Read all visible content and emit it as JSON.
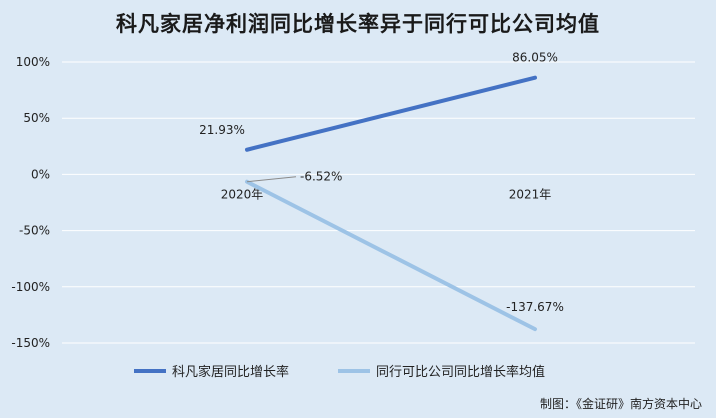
{
  "chart_data": {
    "type": "line",
    "title": "科凡家居净利润同比增长率异于同行可比公司均值",
    "categories": [
      "2020年",
      "2021年"
    ],
    "ylim": [
      -150,
      100
    ],
    "yticks": [
      100,
      50,
      0,
      -50,
      -100,
      -150
    ],
    "ytick_labels": [
      "100%",
      "50%",
      "0%",
      "-50%",
      "-100%",
      "-150%"
    ],
    "grid": true,
    "legend_position": "bottom",
    "series": [
      {
        "name": "科凡家居同比增长率",
        "values": [
          21.93,
          86.05
        ],
        "labels": [
          "21.93%",
          "86.05%"
        ],
        "color": "#4472c4"
      },
      {
        "name": "同行可比公司同比增长率均值",
        "values": [
          -6.52,
          -137.67
        ],
        "labels": [
          "-6.52%",
          "-137.67%"
        ],
        "color": "#9dc3e6"
      }
    ]
  },
  "footer": {
    "credit": "制图：《金证研》南方资本中心"
  }
}
